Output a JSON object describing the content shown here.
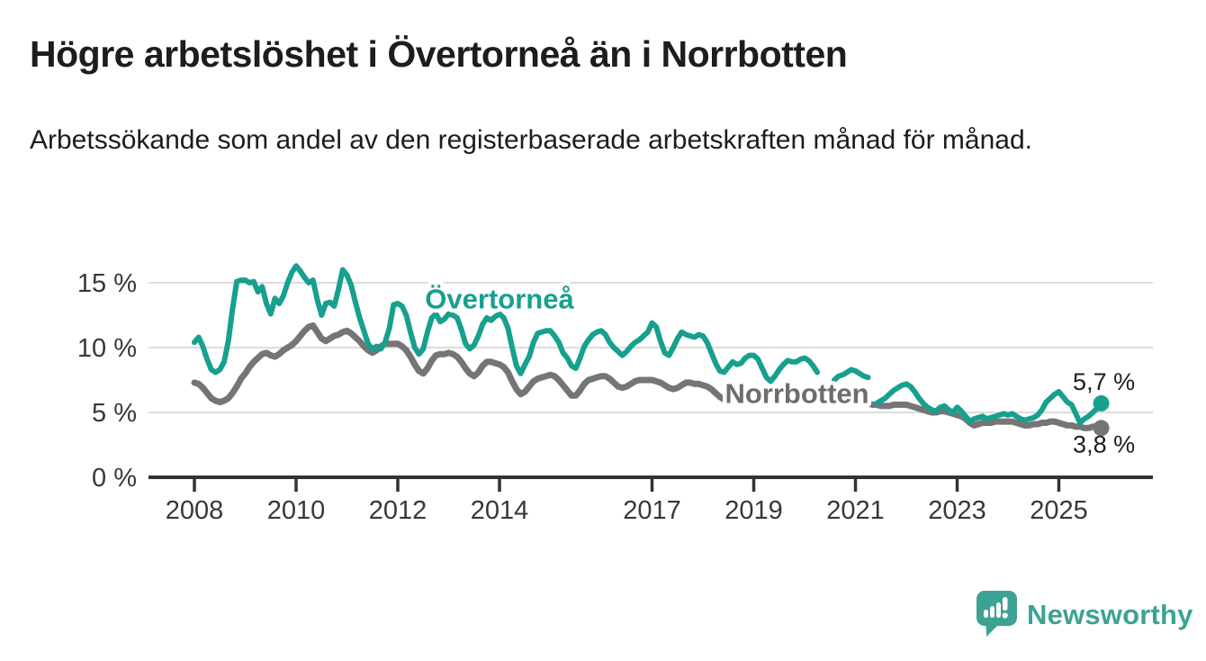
{
  "header": {
    "title": "Högre arbetslöshet i Övertorneå än i Norrbotten",
    "subtitle": "Arbetssökande som andel av den registerbaserade arbetskraften månad för månad."
  },
  "chart_data": {
    "type": "line",
    "title": "Högre arbetslöshet i Övertorneå än i Norrbotten",
    "subtitle": "Arbetssökande som andel av den registerbaserade arbetskraften månad för månad.",
    "unit": "%",
    "frequency": "monthly",
    "x_start_year": 2008,
    "x_end": "2025-11",
    "ylim": [
      0,
      16.5
    ],
    "grid": "horizontal",
    "legend_position": "inline-labels",
    "yticks": [
      {
        "value": 0,
        "label": "0 %"
      },
      {
        "value": 5,
        "label": "5 %"
      },
      {
        "value": 10,
        "label": "10 %"
      },
      {
        "value": 15,
        "label": "15 %"
      }
    ],
    "xticks": [
      2008,
      2010,
      2012,
      2014,
      2017,
      2019,
      2021,
      2023,
      2025
    ],
    "series": [
      {
        "name": "Norrbotten",
        "color": "#757575",
        "label_color": "#6d6d6d",
        "end_value": 3.8,
        "end_label": "3,8 %",
        "label_at": {
          "year": 2019.85,
          "value": 6.5
        },
        "values": [
          7.3,
          7.2,
          6.9,
          6.5,
          6.1,
          5.9,
          5.8,
          5.9,
          6.1,
          6.5,
          7.0,
          7.6,
          8.0,
          8.5,
          8.9,
          9.2,
          9.5,
          9.6,
          9.4,
          9.3,
          9.5,
          9.8,
          10.0,
          10.2,
          10.5,
          10.9,
          11.3,
          11.6,
          11.7,
          11.2,
          10.7,
          10.5,
          10.7,
          10.9,
          11.0,
          11.2,
          11.3,
          11.1,
          10.8,
          10.5,
          10.1,
          9.8,
          9.6,
          9.8,
          10.1,
          10.3,
          10.3,
          10.3,
          10.3,
          10.1,
          9.8,
          9.3,
          8.7,
          8.2,
          8.0,
          8.4,
          9.0,
          9.4,
          9.5,
          9.5,
          9.6,
          9.5,
          9.3,
          8.9,
          8.4,
          8.0,
          7.8,
          8.1,
          8.6,
          8.9,
          8.9,
          8.8,
          8.7,
          8.5,
          8.1,
          7.4,
          6.8,
          6.4,
          6.6,
          7.0,
          7.4,
          7.6,
          7.7,
          7.8,
          7.9,
          7.8,
          7.5,
          7.1,
          6.7,
          6.3,
          6.3,
          6.7,
          7.2,
          7.5,
          7.6,
          7.7,
          7.8,
          7.8,
          7.6,
          7.3,
          7.0,
          6.9,
          7.0,
          7.2,
          7.4,
          7.5,
          7.5,
          7.5,
          7.5,
          7.4,
          7.3,
          7.1,
          6.9,
          6.8,
          6.9,
          7.1,
          7.3,
          7.3,
          7.2,
          7.2,
          7.1,
          7.0,
          6.8,
          6.5,
          6.2,
          6.0,
          6.1,
          6.3,
          6.5,
          6.6,
          6.6,
          6.6,
          6.6,
          6.5,
          6.4,
          6.2,
          6.0,
          5.9,
          6.0,
          6.1,
          6.2,
          6.3,
          6.3,
          6.3,
          6.3,
          6.3,
          6.4,
          6.6,
          6.7,
          6.7,
          6.6,
          6.5,
          6.4,
          6.3,
          6.2,
          6.1,
          6.0,
          5.9,
          5.8,
          5.7,
          5.6,
          5.6,
          5.5,
          5.5,
          5.5,
          5.6,
          5.6,
          5.6,
          5.6,
          5.5,
          5.4,
          5.3,
          5.2,
          5.1,
          5.0,
          5.0,
          5.1,
          5.1,
          5.0,
          4.9,
          4.8,
          4.7,
          4.5,
          4.2,
          4.0,
          4.1,
          4.2,
          4.2,
          4.2,
          4.3,
          4.3,
          4.3,
          4.3,
          4.3,
          4.2,
          4.1,
          4.0,
          4.0,
          4.1,
          4.1,
          4.2,
          4.2,
          4.3,
          4.3,
          4.2,
          4.1,
          4.0,
          4.0,
          3.9,
          3.9,
          3.8,
          3.8,
          3.9,
          3.9,
          3.8
        ]
      },
      {
        "name": "Övertorneå",
        "color": "#17a08e",
        "label_color": "#17a08e",
        "end_value": 5.7,
        "end_label": "5,7 %",
        "label_at": {
          "year": 2014.0,
          "value": 13.8
        },
        "values": [
          10.4,
          10.8,
          10.1,
          9.1,
          8.3,
          8.1,
          8.3,
          8.9,
          10.5,
          13.0,
          15.1,
          15.2,
          15.2,
          15.0,
          15.1,
          14.3,
          14.7,
          13.4,
          12.6,
          13.8,
          13.4,
          14.0,
          15.0,
          15.8,
          16.3,
          15.9,
          15.4,
          15.0,
          15.2,
          13.7,
          12.5,
          13.4,
          13.5,
          13.2,
          14.5,
          16.0,
          15.6,
          14.8,
          13.5,
          12.3,
          11.3,
          10.3,
          9.9,
          10.1,
          9.9,
          10.4,
          11.5,
          13.3,
          13.4,
          13.2,
          12.5,
          11.2,
          10.0,
          9.5,
          9.9,
          11.2,
          12.3,
          12.6,
          12.0,
          12.2,
          12.6,
          12.5,
          12.3,
          11.4,
          10.3,
          9.9,
          10.2,
          10.9,
          11.8,
          12.3,
          12.1,
          12.4,
          12.6,
          12.3,
          11.5,
          10.0,
          8.6,
          8.0,
          8.7,
          9.3,
          10.4,
          11.1,
          11.2,
          11.3,
          11.3,
          10.9,
          10.4,
          9.6,
          9.2,
          8.6,
          8.4,
          9.2,
          10.1,
          10.6,
          11.0,
          11.2,
          11.3,
          11.0,
          10.4,
          10.0,
          9.7,
          9.4,
          9.7,
          10.1,
          10.4,
          10.6,
          10.9,
          11.2,
          11.9,
          11.6,
          10.5,
          9.6,
          9.4,
          10.0,
          10.7,
          11.2,
          11.0,
          10.9,
          10.8,
          11.0,
          10.9,
          10.4,
          9.6,
          8.8,
          8.2,
          8.1,
          8.5,
          8.9,
          8.7,
          8.8,
          9.2,
          9.4,
          9.4,
          9.1,
          8.4,
          7.7,
          7.4,
          7.8,
          8.3,
          8.7,
          9.0,
          8.9,
          8.9,
          9.1,
          9.2,
          9.0,
          8.6,
          8.1,
          null,
          null,
          null,
          7.5,
          7.8,
          7.9,
          8.1,
          8.3,
          8.2,
          8.0,
          7.8,
          7.7,
          null,
          5.7,
          5.9,
          6.1,
          6.4,
          6.7,
          6.9,
          7.1,
          7.2,
          7.0,
          6.6,
          6.1,
          5.7,
          5.4,
          5.2,
          5.1,
          5.4,
          5.5,
          5.2,
          5.0,
          5.4,
          5.1,
          4.7,
          4.3,
          4.5,
          4.6,
          4.7,
          4.5,
          4.6,
          4.7,
          4.8,
          4.9,
          4.8,
          4.9,
          4.7,
          4.5,
          4.4,
          4.5,
          4.6,
          4.8,
          5.2,
          5.8,
          6.1,
          6.4,
          6.6,
          6.2,
          5.8,
          5.6,
          4.9,
          4.2,
          4.5,
          4.7,
          5.0,
          5.3,
          5.7
        ]
      }
    ]
  },
  "footer": {
    "brand": "Newsworthy"
  }
}
